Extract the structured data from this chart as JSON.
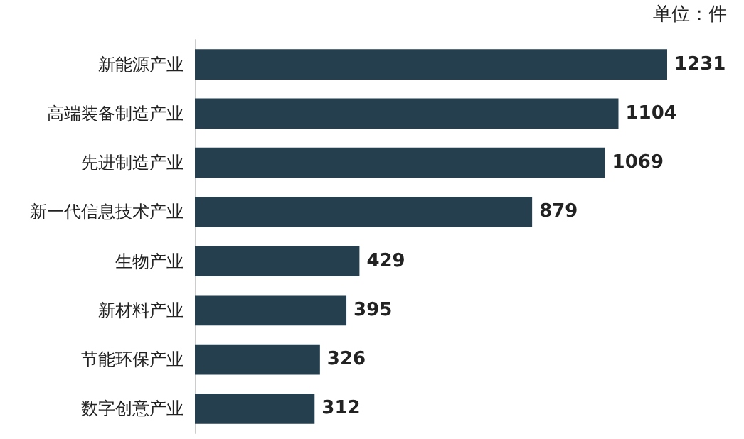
{
  "chart_data": {
    "type": "bar",
    "orientation": "horizontal",
    "categories": [
      "新能源产业",
      "高端装备制造产业",
      "先进制造产业",
      "新一代信息技术产业",
      "生物产业",
      "新材料产业",
      "节能环保产业",
      "数字创意产业"
    ],
    "values": [
      1231,
      1104,
      1069,
      879,
      429,
      395,
      326,
      312
    ],
    "color": "#263f4e",
    "data_labels": true,
    "annotations": [
      "单位：件"
    ]
  }
}
